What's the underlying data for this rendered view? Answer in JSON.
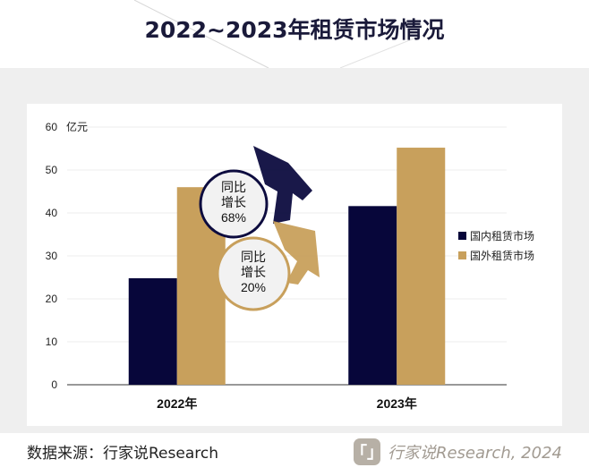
{
  "page": {
    "title": "2022~2023年租赁市场情况",
    "source": "数据来源：行家说Research",
    "brand_logo": "「」",
    "brand_text": "行家说Research, 2024"
  },
  "chart_data": {
    "type": "bar",
    "categories": [
      "2022年",
      "2023年"
    ],
    "series": [
      {
        "name": "国内租赁市场",
        "color": "#07063a",
        "values": [
          24.8,
          41.6
        ]
      },
      {
        "name": "国外租赁市场",
        "color": "#c8a05c",
        "values": [
          46.0,
          55.2
        ]
      }
    ],
    "y_unit": "亿元",
    "yticks": [
      0,
      10,
      20,
      30,
      40,
      50,
      60
    ],
    "ylim": [
      0,
      60
    ],
    "grid": true,
    "legend": "right",
    "annotations": [
      {
        "text_lines": [
          "同比",
          "增长",
          "68%"
        ],
        "series": "国内租赁市场"
      },
      {
        "text_lines": [
          "同比",
          "增长",
          "20%"
        ],
        "series": "国外租赁市场"
      }
    ]
  }
}
